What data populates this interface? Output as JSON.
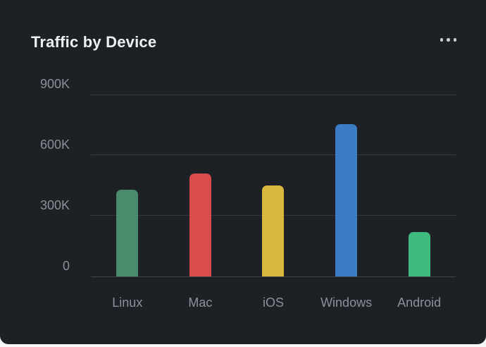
{
  "card": {
    "title": "Traffic by Device",
    "menu_icon": "ellipsis-menu"
  },
  "colors": {
    "page_bg": "#f7f8f9",
    "card_bg": "#1d2126",
    "title_text": "#eef0f2",
    "axis_label": "#8a9098",
    "gridline": "#363b42",
    "menu_dots": "#c9ccd1"
  },
  "chart_data": {
    "type": "bar",
    "title": "Traffic by Device",
    "categories": [
      "Linux",
      "Mac",
      "iOS",
      "Windows",
      "Android"
    ],
    "values": [
      430000,
      510000,
      450000,
      755000,
      220000
    ],
    "bar_colors": [
      "#4a8b6e",
      "#d84c4c",
      "#d9b840",
      "#3b7cc4",
      "#3eba7e"
    ],
    "xlabel": "",
    "ylabel": "",
    "ylim": [
      0,
      900000
    ],
    "ytick_labels": [
      "900K",
      "600K",
      "300K",
      "0"
    ],
    "grid": true,
    "legend": false
  }
}
